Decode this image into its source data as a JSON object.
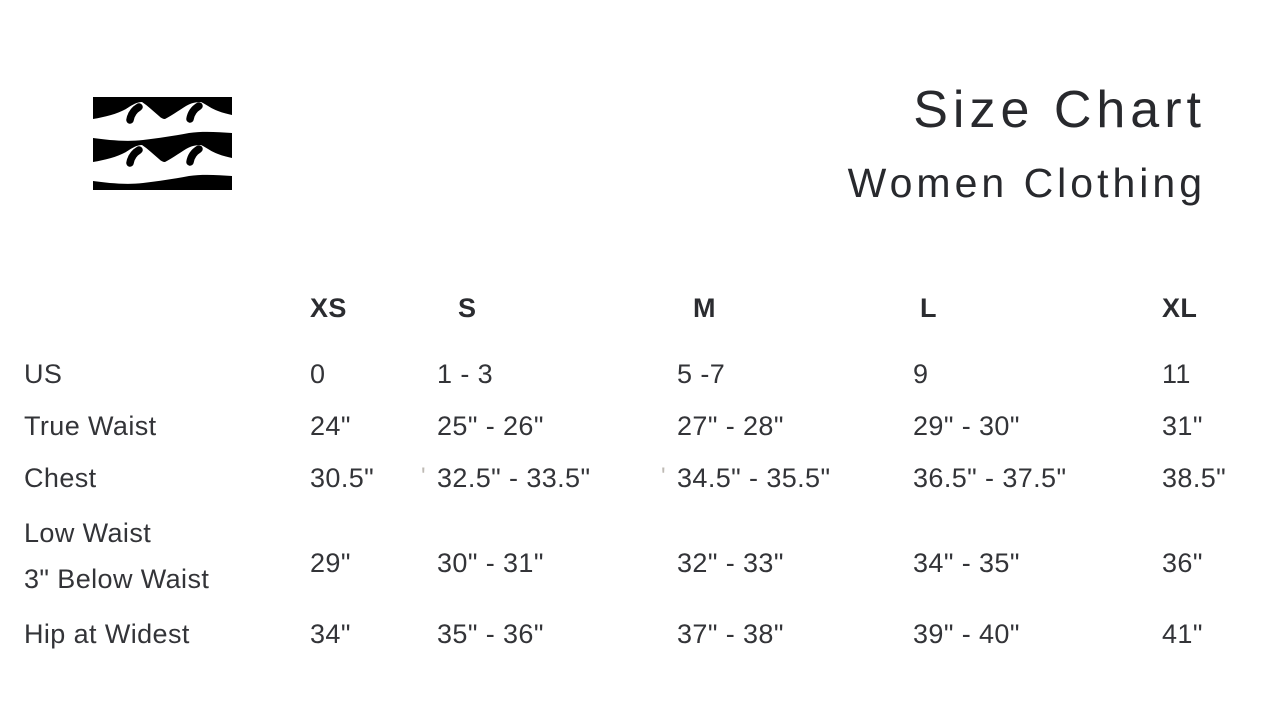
{
  "header": {
    "title": "Size Chart",
    "subtitle": "Women Clothing",
    "logo_icon": "billabong-wave-logo"
  },
  "table": {
    "columns": [
      "XS",
      "S",
      "M",
      "L",
      "XL"
    ],
    "rows": [
      {
        "label": [
          "US"
        ],
        "values": [
          "0",
          "1 - 3",
          "5 -7",
          "9",
          "11"
        ]
      },
      {
        "label": [
          "True Waist"
        ],
        "values": [
          "24\"",
          "25\" - 26\"",
          "27\" - 28\"",
          "29\" - 30\"",
          "31\""
        ]
      },
      {
        "label": [
          "Chest"
        ],
        "values": [
          "30.5\"",
          {
            "prefix": "'",
            "text": "32.5\" - 33.5\""
          },
          {
            "prefix": "'",
            "text": "34.5\" - 35.5\""
          },
          "36.5\" - 37.5\"",
          "38.5\""
        ]
      },
      {
        "label": [
          "Low Waist",
          "3\" Below Waist"
        ],
        "values": [
          "29\"",
          "30\" - 31\"",
          "32\" - 33\"",
          "34\" - 35\"",
          "36\""
        ]
      },
      {
        "label": [
          "Hip at Widest"
        ],
        "values": [
          "34\"",
          "35\" - 36\"",
          "37\" - 38\"",
          "39\" - 40\"",
          "41\""
        ]
      }
    ]
  },
  "colors": {
    "background": "#ffffff",
    "text": "#333438",
    "column_header": "#2b2c30",
    "title": "#28292d",
    "logo_background": "#000000",
    "logo_wave": "#ffffff"
  }
}
